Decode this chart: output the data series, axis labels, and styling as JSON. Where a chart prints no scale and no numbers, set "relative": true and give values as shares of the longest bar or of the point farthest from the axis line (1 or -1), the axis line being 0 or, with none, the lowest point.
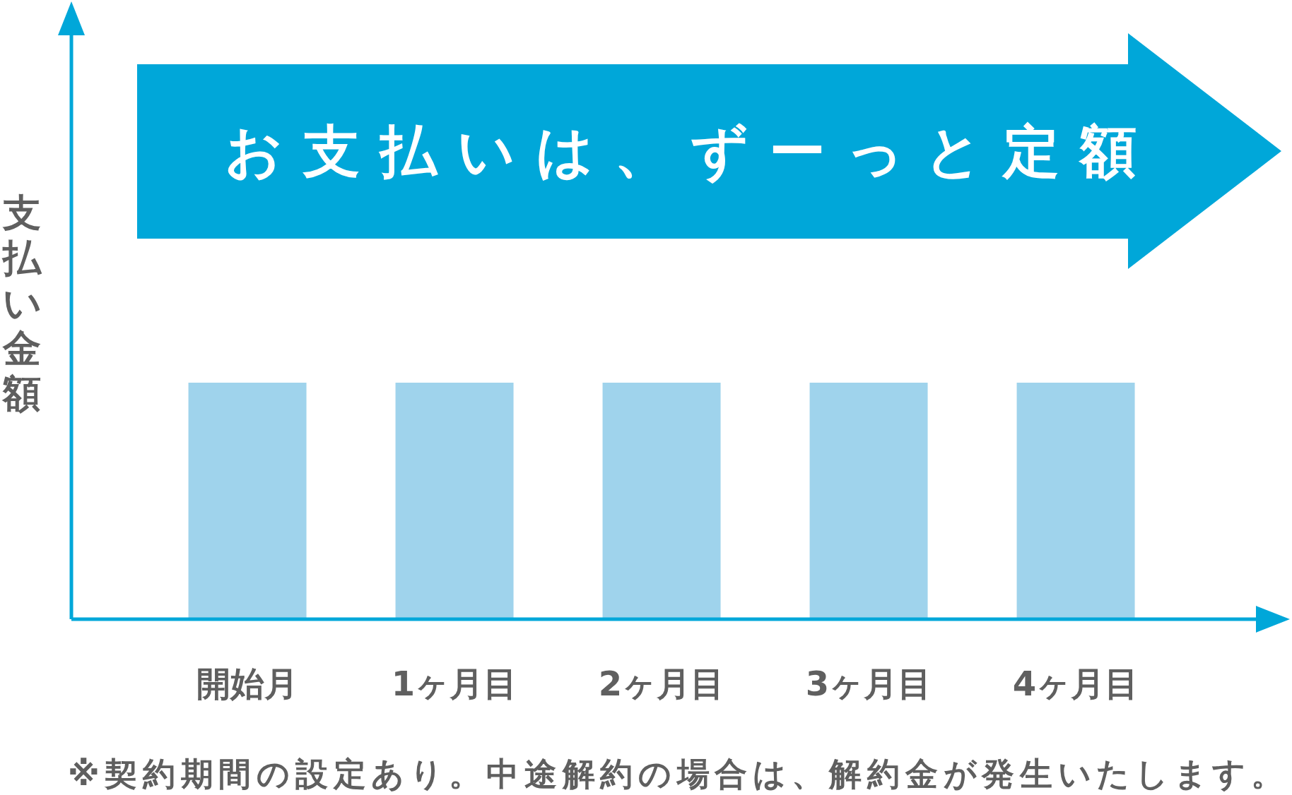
{
  "chart_data": {
    "type": "bar",
    "relative": true,
    "title": "お支払いは、ずーっと定額",
    "ylabel": "支払い金額",
    "categories": [
      "開始月",
      "1ヶ月目",
      "2ヶ月目",
      "3ヶ月目",
      "4ヶ月目"
    ],
    "values": [
      1,
      1,
      1,
      1,
      1
    ],
    "color": "#9fd3ec",
    "annotations": [
      "※契約期間の設定あり。中途解約の場合は、解約金が発生いたします。"
    ]
  }
}
